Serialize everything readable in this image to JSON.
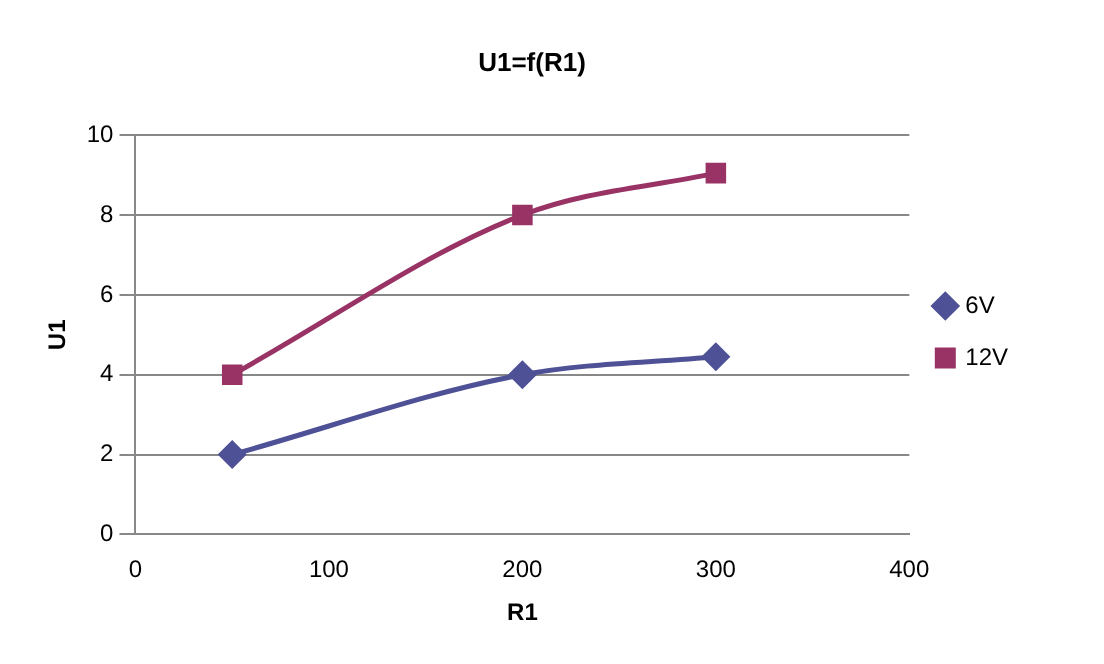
{
  "chart_data": {
    "type": "line",
    "title": "U1=f(R1)",
    "xlabel": "R1",
    "ylabel": "U1",
    "series": [
      {
        "name": "6V",
        "color": "#4f5197",
        "x": [
          50,
          200,
          300
        ],
        "values": [
          2,
          4,
          4.45
        ],
        "marker": "diamond"
      },
      {
        "name": "12V",
        "color": "#993366",
        "x": [
          50,
          200,
          300
        ],
        "values": [
          4,
          8,
          9.05
        ],
        "marker": "square"
      }
    ],
    "xlim": [
      0,
      400
    ],
    "xticks": [
      0,
      100,
      200,
      300,
      400
    ],
    "ylim": [
      0,
      10
    ],
    "yticks": [
      0,
      2,
      4,
      6,
      8,
      10
    ],
    "grid": "y",
    "legend": "right",
    "line_style": "solid"
  }
}
